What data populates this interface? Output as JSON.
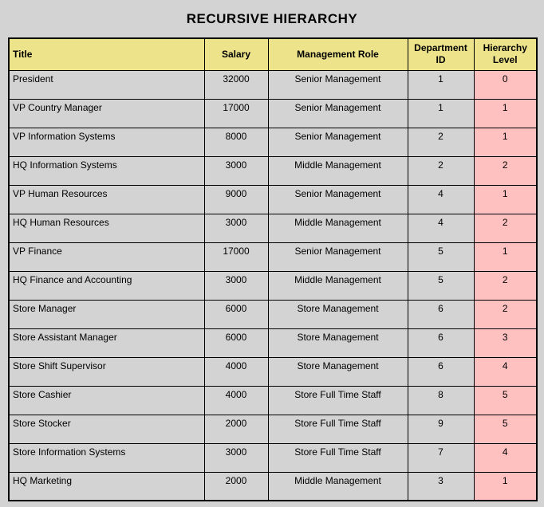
{
  "report": {
    "title": "RECURSIVE HIERARCHY"
  },
  "colors": {
    "page_bg": "#d3d3d3",
    "header_bg": "#ede38b",
    "row_bg": "#d3d3d3",
    "level_bg": "#ffc0c0",
    "border": "#000000",
    "text": "#000000"
  },
  "table": {
    "columns": [
      "Title",
      "Salary",
      "Management Role",
      "Department ID",
      "Hierarchy Level"
    ],
    "rows": [
      [
        "President",
        "32000",
        "Senior Management",
        "1",
        "0"
      ],
      [
        "VP Country Manager",
        "17000",
        "Senior Management",
        "1",
        "1"
      ],
      [
        "VP Information Systems",
        "8000",
        "Senior Management",
        "2",
        "1"
      ],
      [
        "HQ Information Systems",
        "3000",
        "Middle Management",
        "2",
        "2"
      ],
      [
        "VP Human Resources",
        "9000",
        "Senior Management",
        "4",
        "1"
      ],
      [
        "HQ Human Resources",
        "3000",
        "Middle Management",
        "4",
        "2"
      ],
      [
        "VP Finance",
        "17000",
        "Senior Management",
        "5",
        "1"
      ],
      [
        "HQ Finance and Accounting",
        "3000",
        "Middle Management",
        "5",
        "2"
      ],
      [
        "Store Manager",
        "6000",
        "Store Management",
        "6",
        "2"
      ],
      [
        "Store Assistant Manager",
        "6000",
        "Store Management",
        "6",
        "3"
      ],
      [
        "Store Shift Supervisor",
        "4000",
        "Store Management",
        "6",
        "4"
      ],
      [
        "Store Cashier",
        "4000",
        "Store Full Time Staff",
        "8",
        "5"
      ],
      [
        "Store Stocker",
        "2000",
        "Store Full Time Staff",
        "9",
        "5"
      ],
      [
        "Store Information Systems",
        "3000",
        "Store Full Time Staff",
        "7",
        "4"
      ],
      [
        "HQ Marketing",
        "2000",
        "Middle Management",
        "3",
        "1"
      ]
    ]
  }
}
